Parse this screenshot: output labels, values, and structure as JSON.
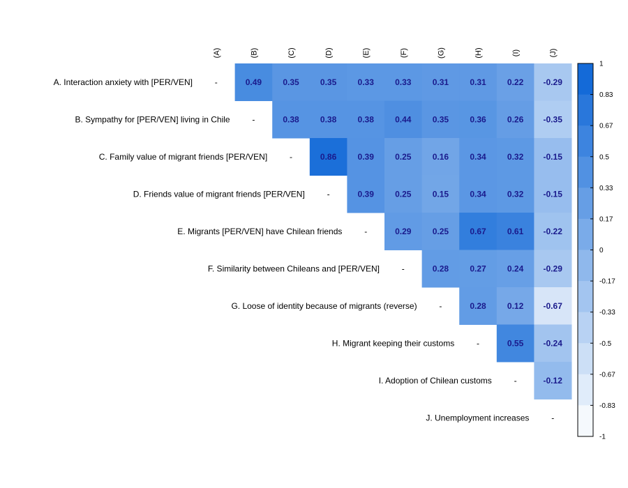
{
  "chart_data": {
    "type": "heatmap",
    "layout": "upper-triangle-correlation",
    "column_labels": [
      "(A)",
      "(B)",
      "(C)",
      "(D)",
      "(E)",
      "(F)",
      "(G)",
      "(H)",
      "(I)",
      "(J)"
    ],
    "row_labels": [
      "A. Interaction anxiety with [PER/VEN]",
      "B. Sympathy for [PER/VEN] living in Chile",
      "C. Family value of migrant friends [PER/VEN]",
      "D. Friends value of migrant friends [PER/VEN]",
      "E. Migrants [PER/VEN] have Chilean friends",
      "F. Similarity between Chileans and [PER/VEN]",
      "G. Loose of identity because of migrants (reverse)",
      "H. Migrant keeping their customs",
      "I. Adoption of Chilean customs",
      "J. Unemployment increases"
    ],
    "diagonal_symbol": "-",
    "values": [
      [
        null,
        0.49,
        0.35,
        0.35,
        0.33,
        0.33,
        0.31,
        0.31,
        0.22,
        -0.29
      ],
      [
        null,
        null,
        0.38,
        0.38,
        0.38,
        0.44,
        0.35,
        0.36,
        0.26,
        -0.35
      ],
      [
        null,
        null,
        null,
        0.86,
        0.39,
        0.25,
        0.16,
        0.34,
        0.32,
        -0.15
      ],
      [
        null,
        null,
        null,
        null,
        0.39,
        0.25,
        0.15,
        0.34,
        0.32,
        -0.15
      ],
      [
        null,
        null,
        null,
        null,
        null,
        0.29,
        0.25,
        0.67,
        0.61,
        -0.22
      ],
      [
        null,
        null,
        null,
        null,
        null,
        null,
        0.28,
        0.27,
        0.24,
        -0.29
      ],
      [
        null,
        null,
        null,
        null,
        null,
        null,
        null,
        0.28,
        0.12,
        -0.67
      ],
      [
        null,
        null,
        null,
        null,
        null,
        null,
        null,
        null,
        0.55,
        -0.24
      ],
      [
        null,
        null,
        null,
        null,
        null,
        null,
        null,
        null,
        null,
        -0.12
      ],
      [
        null,
        null,
        null,
        null,
        null,
        null,
        null,
        null,
        null,
        null
      ]
    ],
    "colorbar": {
      "range": [
        -1,
        1
      ],
      "ticks": [
        "1",
        "0.83",
        "0.67",
        "0.5",
        "0.33",
        "0.17",
        "0",
        "-0.17",
        "-0.33",
        "-0.5",
        "-0.67",
        "-0.83",
        "-1"
      ]
    },
    "colors": {
      "low": "#ffffff",
      "high": "#0a64d6",
      "value_text": "#1a1a8c"
    }
  }
}
